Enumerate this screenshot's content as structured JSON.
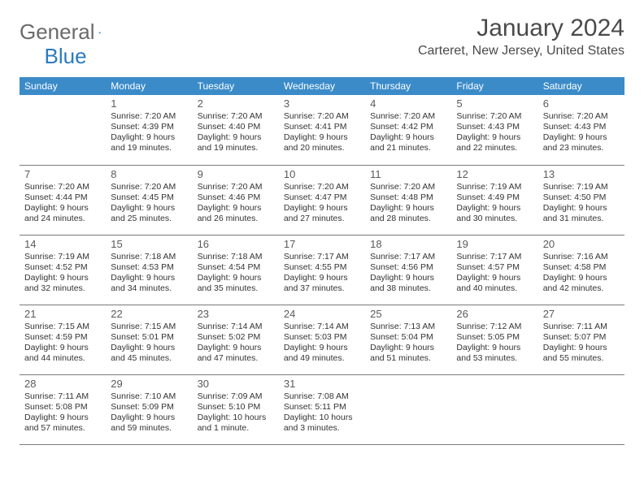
{
  "brand": {
    "word1": "General",
    "word2": "Blue"
  },
  "title": "January 2024",
  "location": "Carteret, New Jersey, United States",
  "colors": {
    "header_bg": "#3b8bc9",
    "header_text": "#ffffff",
    "border": "#7a7a7a",
    "logo_gray": "#6a6a6a",
    "logo_blue": "#2b7bbf",
    "text": "#333333"
  },
  "day_headers": [
    "Sunday",
    "Monday",
    "Tuesday",
    "Wednesday",
    "Thursday",
    "Friday",
    "Saturday"
  ],
  "weeks": [
    [
      null,
      {
        "n": "1",
        "sr": "7:20 AM",
        "ss": "4:39 PM",
        "dl": "9 hours and 19 minutes."
      },
      {
        "n": "2",
        "sr": "7:20 AM",
        "ss": "4:40 PM",
        "dl": "9 hours and 19 minutes."
      },
      {
        "n": "3",
        "sr": "7:20 AM",
        "ss": "4:41 PM",
        "dl": "9 hours and 20 minutes."
      },
      {
        "n": "4",
        "sr": "7:20 AM",
        "ss": "4:42 PM",
        "dl": "9 hours and 21 minutes."
      },
      {
        "n": "5",
        "sr": "7:20 AM",
        "ss": "4:43 PM",
        "dl": "9 hours and 22 minutes."
      },
      {
        "n": "6",
        "sr": "7:20 AM",
        "ss": "4:43 PM",
        "dl": "9 hours and 23 minutes."
      }
    ],
    [
      {
        "n": "7",
        "sr": "7:20 AM",
        "ss": "4:44 PM",
        "dl": "9 hours and 24 minutes."
      },
      {
        "n": "8",
        "sr": "7:20 AM",
        "ss": "4:45 PM",
        "dl": "9 hours and 25 minutes."
      },
      {
        "n": "9",
        "sr": "7:20 AM",
        "ss": "4:46 PM",
        "dl": "9 hours and 26 minutes."
      },
      {
        "n": "10",
        "sr": "7:20 AM",
        "ss": "4:47 PM",
        "dl": "9 hours and 27 minutes."
      },
      {
        "n": "11",
        "sr": "7:20 AM",
        "ss": "4:48 PM",
        "dl": "9 hours and 28 minutes."
      },
      {
        "n": "12",
        "sr": "7:19 AM",
        "ss": "4:49 PM",
        "dl": "9 hours and 30 minutes."
      },
      {
        "n": "13",
        "sr": "7:19 AM",
        "ss": "4:50 PM",
        "dl": "9 hours and 31 minutes."
      }
    ],
    [
      {
        "n": "14",
        "sr": "7:19 AM",
        "ss": "4:52 PM",
        "dl": "9 hours and 32 minutes."
      },
      {
        "n": "15",
        "sr": "7:18 AM",
        "ss": "4:53 PM",
        "dl": "9 hours and 34 minutes."
      },
      {
        "n": "16",
        "sr": "7:18 AM",
        "ss": "4:54 PM",
        "dl": "9 hours and 35 minutes."
      },
      {
        "n": "17",
        "sr": "7:17 AM",
        "ss": "4:55 PM",
        "dl": "9 hours and 37 minutes."
      },
      {
        "n": "18",
        "sr": "7:17 AM",
        "ss": "4:56 PM",
        "dl": "9 hours and 38 minutes."
      },
      {
        "n": "19",
        "sr": "7:17 AM",
        "ss": "4:57 PM",
        "dl": "9 hours and 40 minutes."
      },
      {
        "n": "20",
        "sr": "7:16 AM",
        "ss": "4:58 PM",
        "dl": "9 hours and 42 minutes."
      }
    ],
    [
      {
        "n": "21",
        "sr": "7:15 AM",
        "ss": "4:59 PM",
        "dl": "9 hours and 44 minutes."
      },
      {
        "n": "22",
        "sr": "7:15 AM",
        "ss": "5:01 PM",
        "dl": "9 hours and 45 minutes."
      },
      {
        "n": "23",
        "sr": "7:14 AM",
        "ss": "5:02 PM",
        "dl": "9 hours and 47 minutes."
      },
      {
        "n": "24",
        "sr": "7:14 AM",
        "ss": "5:03 PM",
        "dl": "9 hours and 49 minutes."
      },
      {
        "n": "25",
        "sr": "7:13 AM",
        "ss": "5:04 PM",
        "dl": "9 hours and 51 minutes."
      },
      {
        "n": "26",
        "sr": "7:12 AM",
        "ss": "5:05 PM",
        "dl": "9 hours and 53 minutes."
      },
      {
        "n": "27",
        "sr": "7:11 AM",
        "ss": "5:07 PM",
        "dl": "9 hours and 55 minutes."
      }
    ],
    [
      {
        "n": "28",
        "sr": "7:11 AM",
        "ss": "5:08 PM",
        "dl": "9 hours and 57 minutes."
      },
      {
        "n": "29",
        "sr": "7:10 AM",
        "ss": "5:09 PM",
        "dl": "9 hours and 59 minutes."
      },
      {
        "n": "30",
        "sr": "7:09 AM",
        "ss": "5:10 PM",
        "dl": "10 hours and 1 minute."
      },
      {
        "n": "31",
        "sr": "7:08 AM",
        "ss": "5:11 PM",
        "dl": "10 hours and 3 minutes."
      },
      null,
      null,
      null
    ]
  ],
  "labels": {
    "sunrise": "Sunrise:",
    "sunset": "Sunset:",
    "daylight": "Daylight:"
  }
}
